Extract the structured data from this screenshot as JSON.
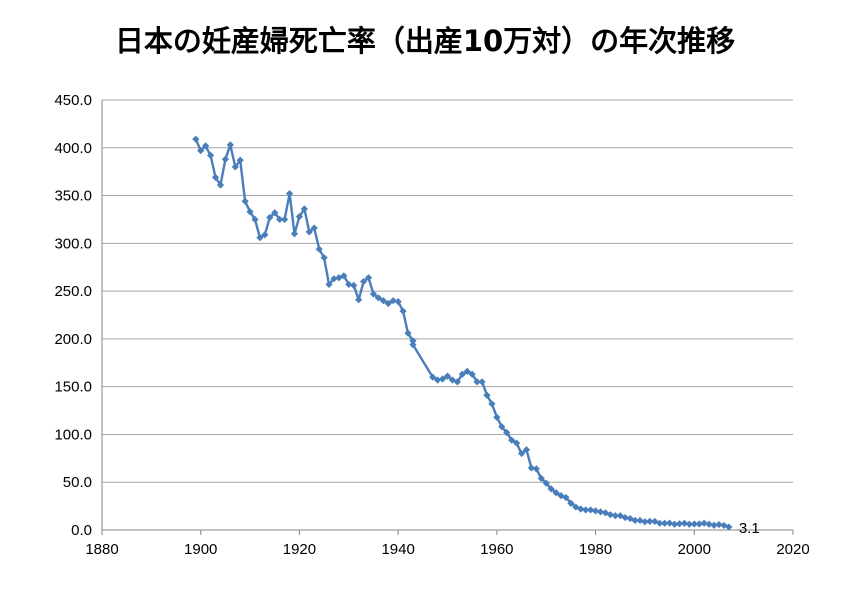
{
  "chart_data": {
    "type": "line",
    "title": "日本の妊産婦死亡率（出産10万対）の年次推移",
    "xlabel": "",
    "ylabel": "",
    "xlim": [
      1880,
      2020
    ],
    "ylim": [
      0,
      450
    ],
    "x_ticks": [
      "1880",
      "1900",
      "1920",
      "1940",
      "1960",
      "1980",
      "2000",
      "2020"
    ],
    "y_ticks": [
      "0.0",
      "50.0",
      "100.0",
      "150.0",
      "200.0",
      "250.0",
      "300.0",
      "350.0",
      "400.0",
      "450.0"
    ],
    "grid": "horizontal",
    "legend": "none",
    "colors": {
      "series": "#4a7ebb",
      "grid": "#a6a6a6",
      "axis": "#868686"
    },
    "end_label": "3.1",
    "segments": [
      {
        "x": [
          1899,
          1900,
          1901,
          1902,
          1903,
          1904,
          1905,
          1906,
          1907,
          1908,
          1909,
          1910,
          1911,
          1912,
          1913,
          1914,
          1915,
          1916,
          1917,
          1918,
          1919,
          1920,
          1921,
          1922,
          1923,
          1924,
          1925,
          1926,
          1927,
          1928,
          1929,
          1930,
          1931,
          1932,
          1933,
          1934,
          1935,
          1936,
          1937,
          1938,
          1939,
          1940,
          1941,
          1942,
          1943
        ],
        "y": [
          409,
          397,
          402,
          392,
          369,
          361,
          388,
          403,
          380,
          387,
          344,
          333,
          325,
          306,
          309,
          327,
          332,
          325,
          325,
          352,
          310,
          328,
          336,
          312,
          316,
          294,
          285,
          257,
          263,
          264,
          266,
          257,
          256,
          241,
          260,
          264,
          247,
          243,
          240,
          237,
          240,
          239,
          229,
          206,
          198
        ]
      },
      {
        "x": [
          1943,
          1947,
          1948,
          1949,
          1950,
          1951,
          1952,
          1953,
          1954,
          1955,
          1956,
          1957,
          1958,
          1959,
          1960,
          1961,
          1962,
          1963,
          1964,
          1965,
          1966,
          1967,
          1968,
          1969,
          1970,
          1971,
          1972,
          1973,
          1974,
          1975,
          1976,
          1977,
          1978,
          1979,
          1980,
          1981,
          1982,
          1983,
          1984,
          1985,
          1986,
          1987,
          1988,
          1989,
          1990,
          1991,
          1992,
          1993,
          1994,
          1995,
          1996,
          1997,
          1998,
          1999,
          2000,
          2001,
          2002,
          2003,
          2004,
          2005,
          2006,
          2007
        ],
        "y": [
          194,
          160,
          157,
          158,
          161,
          157,
          155,
          163,
          166,
          163,
          155,
          155,
          141,
          132,
          118,
          108,
          102,
          94,
          91,
          80,
          84,
          65,
          64,
          54,
          49,
          43,
          39,
          36,
          34,
          28,
          24,
          22,
          21,
          21,
          20,
          19,
          18,
          16,
          15,
          15,
          13,
          12,
          10,
          10,
          8.6,
          9,
          9,
          7,
          7,
          7.2,
          6,
          6.5,
          7,
          6,
          6.3,
          6.3,
          7.1,
          6,
          5,
          5.7,
          4.8,
          3.1
        ]
      }
    ]
  }
}
